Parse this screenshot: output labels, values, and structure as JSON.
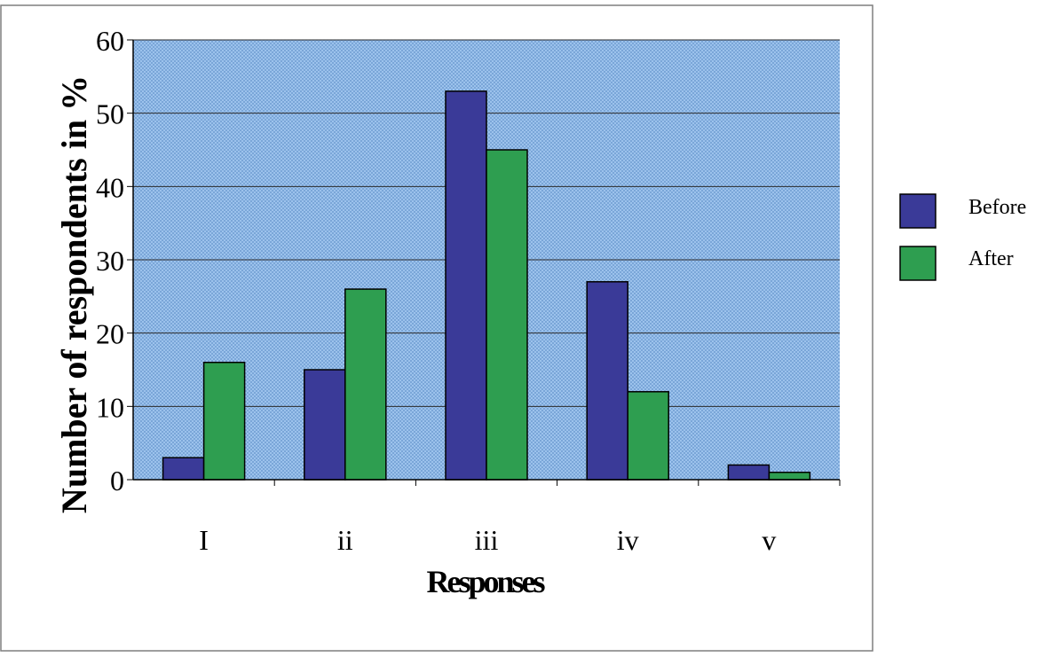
{
  "chart_data": {
    "type": "bar",
    "title": "",
    "xlabel": "Responses",
    "ylabel": "Number of respondents in %",
    "categories": [
      "I",
      "ii",
      "iii",
      "iv",
      "v"
    ],
    "series": [
      {
        "name": "Before",
        "values": [
          3,
          15,
          53,
          27,
          2
        ],
        "color": "#3a3a98"
      },
      {
        "name": "After",
        "values": [
          16,
          26,
          45,
          12,
          1
        ],
        "color": "#2e9e50"
      }
    ],
    "ylim": [
      0,
      60
    ],
    "yticks": [
      0,
      10,
      20,
      30,
      40,
      50,
      60
    ],
    "grid": true,
    "legend": "right",
    "plot_background": "#8fb8e6",
    "frame_color": "#7f7f7f"
  }
}
